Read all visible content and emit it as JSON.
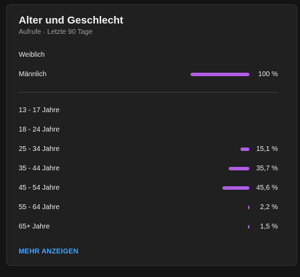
{
  "card": {
    "title": "Alter und Geschlecht",
    "subtitle": "Aufrufe · Letzte 90 Tage",
    "more_label": "MEHR ANZEIGEN"
  },
  "colors": {
    "bar": "#b15de8",
    "link": "#3ea6ff"
  },
  "gender": [
    {
      "label": "Weiblich",
      "value": "",
      "fraction": 0
    },
    {
      "label": "Männlich",
      "value": "100 %",
      "fraction": 1.0
    }
  ],
  "age": [
    {
      "label": "13 - 17 Jahre",
      "value": "",
      "fraction": 0
    },
    {
      "label": "18 - 24 Jahre",
      "value": "",
      "fraction": 0
    },
    {
      "label": "25 - 34 Jahre",
      "value": "15,1 %",
      "fraction": 0.151
    },
    {
      "label": "35 - 44 Jahre",
      "value": "35,7 %",
      "fraction": 0.357
    },
    {
      "label": "45 - 54 Jahre",
      "value": "45,6 %",
      "fraction": 0.456
    },
    {
      "label": "55 - 64 Jahre",
      "value": "2,2 %",
      "fraction": 0.022
    },
    {
      "label": "65+ Jahre",
      "value": "1,5 %",
      "fraction": 0.015
    }
  ]
}
